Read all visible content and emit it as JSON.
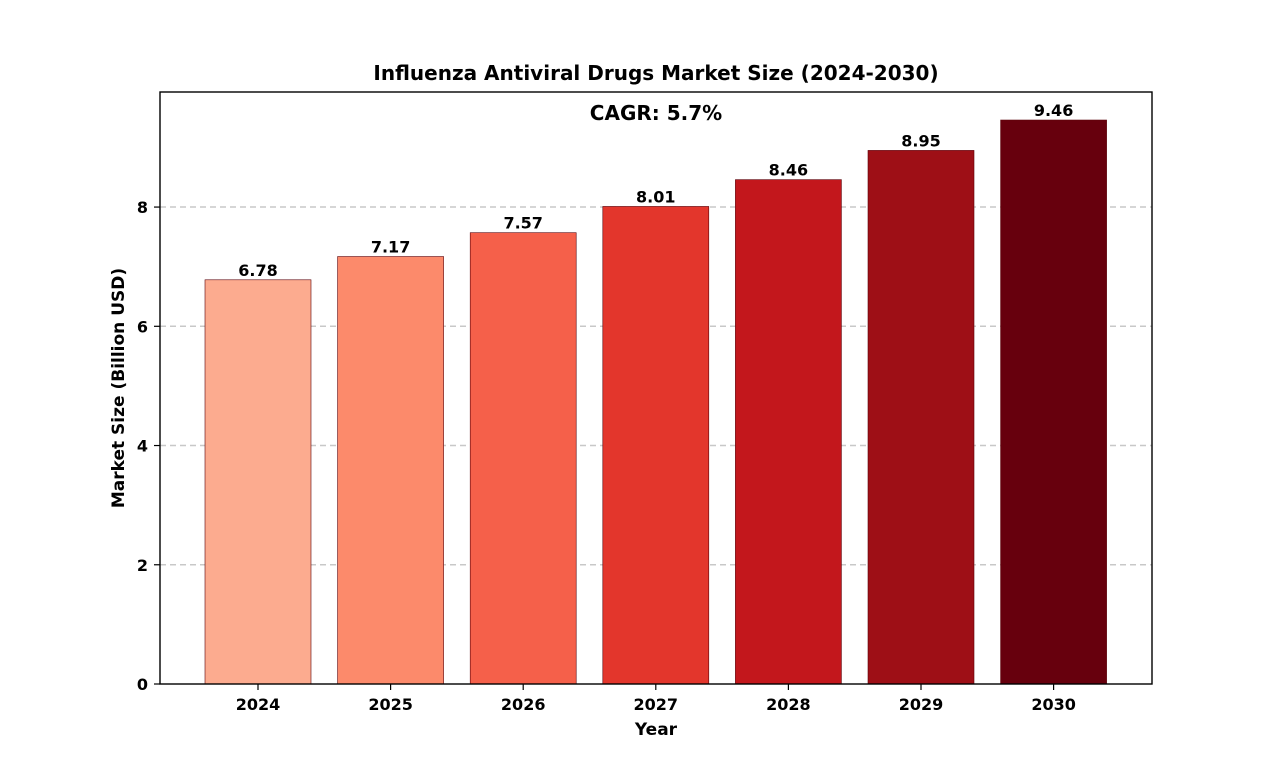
{
  "chart_data": {
    "type": "bar",
    "title": "Influenza Antiviral Drugs Market Size (2024-2030)",
    "xlabel": "Year",
    "ylabel": "Market Size (Billion USD)",
    "annotation": "CAGR: 5.7%",
    "categories": [
      "2024",
      "2025",
      "2026",
      "2027",
      "2028",
      "2029",
      "2030"
    ],
    "values": [
      6.78,
      7.17,
      7.57,
      8.01,
      8.46,
      8.95,
      9.46
    ],
    "value_labels": [
      "6.78",
      "7.17",
      "7.57",
      "8.01",
      "8.46",
      "8.95",
      "9.46"
    ],
    "ylim": [
      0,
      9.93
    ],
    "yticks": [
      0,
      2,
      4,
      6,
      8
    ],
    "ytick_labels": [
      "0",
      "2",
      "4",
      "6",
      "8"
    ],
    "grid": true,
    "bar_colors": [
      "#fcab8f",
      "#fc8a6b",
      "#f5604a",
      "#e3362c",
      "#c3171c",
      "#9e0f16",
      "#67000d"
    ],
    "edge_color": "#5a0008",
    "grid_color": "#c8c8c8"
  }
}
